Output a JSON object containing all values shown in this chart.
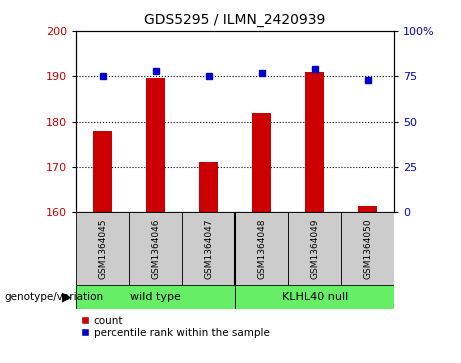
{
  "title": "GDS5295 / ILMN_2420939",
  "samples": [
    "GSM1364045",
    "GSM1364046",
    "GSM1364047",
    "GSM1364048",
    "GSM1364049",
    "GSM1364050"
  ],
  "count_values": [
    178,
    189.5,
    171,
    182,
    191,
    161.5
  ],
  "percentile_values": [
    75,
    78,
    75,
    77,
    79,
    73
  ],
  "ylim_left": [
    160,
    200
  ],
  "ylim_right": [
    0,
    100
  ],
  "yticks_left": [
    160,
    170,
    180,
    190,
    200
  ],
  "yticks_right": [
    0,
    25,
    50,
    75,
    100
  ],
  "ytick_labels_right": [
    "0",
    "25",
    "50",
    "75",
    "100%"
  ],
  "group1_label": "wild type",
  "group2_label": "KLHL40 null",
  "bar_color": "#cc0000",
  "dot_color": "#0000cc",
  "group_color": "#66ee66",
  "sample_box_color": "#cccccc",
  "bar_width": 0.35,
  "legend_count_label": "count",
  "legend_pct_label": "percentile rank within the sample",
  "genotype_label": "genotype/variation",
  "bg_color": "#ffffff"
}
